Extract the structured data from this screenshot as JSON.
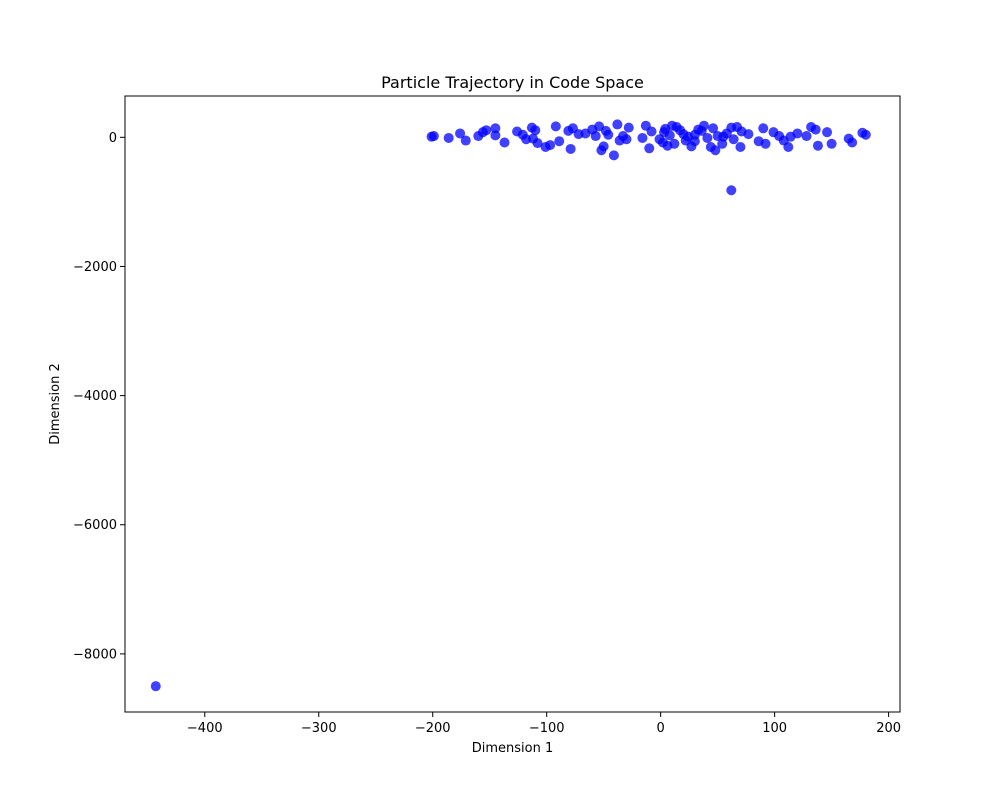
{
  "chart_data": {
    "type": "scatter",
    "title": "Particle Trajectory in Code Space",
    "xlabel": "Dimension 1",
    "ylabel": "Dimension 2",
    "xlim": [
      -470,
      210
    ],
    "ylim": [
      -8900,
      640
    ],
    "xticks": [
      -400,
      -300,
      -200,
      -100,
      0,
      100,
      200
    ],
    "yticks": [
      -8000,
      -6000,
      -4000,
      -2000,
      0
    ],
    "grid": false,
    "legend": "none",
    "point_color": "#0000ff",
    "series": [
      {
        "x": [
          -443,
          62,
          -41,
          -201,
          -199,
          -186,
          -176,
          -171,
          -160,
          -156,
          -153,
          -145,
          -137,
          -126,
          -121,
          -118,
          -113,
          -110,
          -108,
          -101,
          -97,
          -92,
          -89,
          -81,
          -79,
          -77,
          -72,
          -60,
          -57,
          -54,
          -52,
          -50,
          -48,
          -46,
          -38,
          -36,
          -33,
          -28,
          -16,
          -13,
          -10,
          -8,
          -1,
          2,
          4,
          6,
          8,
          10,
          12,
          14,
          17,
          22,
          24,
          27,
          30,
          33,
          38,
          41,
          44,
          46,
          48,
          50,
          54,
          58,
          62,
          64,
          67,
          70,
          77,
          90,
          92,
          99,
          104,
          108,
          112,
          114,
          120,
          132,
          136,
          138,
          146,
          165,
          168,
          177,
          180,
          -30,
          20,
          36,
          55,
          71,
          86,
          128,
          150,
          -66,
          -112,
          -145,
          3,
          30
        ],
        "y": [
          -8500,
          -820,
          -280,
          10,
          20,
          -10,
          60,
          -50,
          20,
          80,
          110,
          140,
          -80,
          90,
          40,
          -30,
          150,
          110,
          -90,
          -150,
          -120,
          170,
          -60,
          100,
          -180,
          140,
          50,
          120,
          20,
          170,
          -200,
          -140,
          100,
          40,
          200,
          -50,
          20,
          150,
          -10,
          180,
          -170,
          90,
          -30,
          -80,
          130,
          -130,
          30,
          180,
          -100,
          160,
          110,
          -50,
          10,
          -140,
          40,
          120,
          180,
          -10,
          -150,
          140,
          -200,
          20,
          -100,
          60,
          150,
          -30,
          160,
          -150,
          50,
          140,
          -100,
          80,
          20,
          -50,
          -150,
          10,
          60,
          160,
          120,
          -130,
          80,
          -20,
          -80,
          70,
          40,
          -30,
          50,
          100,
          10,
          90,
          -60,
          20,
          -100,
          60,
          -20,
          30,
          80,
          -60
        ]
      }
    ]
  }
}
